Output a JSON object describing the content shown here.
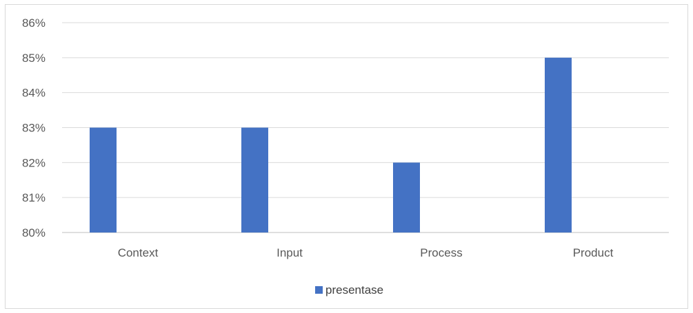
{
  "chart_data": {
    "type": "bar",
    "categories": [
      "Context",
      "Input",
      "Process",
      "Product"
    ],
    "series": [
      {
        "name": "presentase",
        "values": [
          83,
          83,
          82,
          85
        ],
        "color": "#4472c4"
      }
    ],
    "ylim": [
      80,
      86
    ],
    "yticks": [
      "80%",
      "81%",
      "82%",
      "83%",
      "84%",
      "85%",
      "86%"
    ],
    "y_unit": "%",
    "grid": true,
    "legend_position": "bottom"
  }
}
